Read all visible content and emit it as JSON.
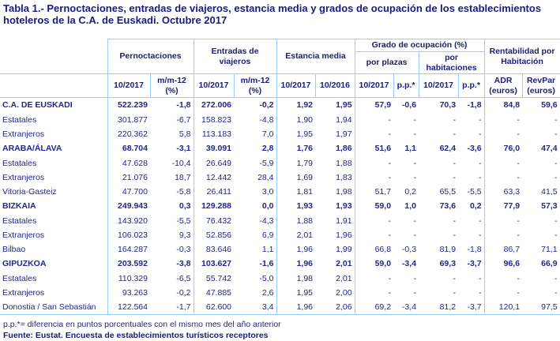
{
  "title": "Tabla 1.- Pernoctaciones, entradas de viajeros, estancia media y grados de ocupación de los establecimientos hoteleros de la C.A. de Euskadi. Octubre 2017",
  "headers": {
    "pernoctaciones": "Pernoctaciones",
    "entradas": "Entradas de viajeros",
    "estancia": "Estancia media",
    "grado": "Grado de ocupación (%)",
    "por_plazas": "por plazas",
    "por_habitaciones": "por habitaciones",
    "rentabilidad": "Rentabilidad por Habitación",
    "sub": [
      "10/2017",
      "m/m-12 (%)",
      "10/2017",
      "m/m-12 (%)",
      "10/2017",
      "10/2016",
      "10/2017",
      "p.p.*",
      "10/2017",
      "p.p.*",
      "ADR (euros)",
      "RevPar (euros)"
    ]
  },
  "rows": [
    {
      "label": "C.A. DE EUSKADI",
      "bold": true,
      "values": [
        "522.239",
        "-1,8",
        "272.006",
        "-0,2",
        "1,92",
        "1,95",
        "57,9",
        "-0,6",
        "70,3",
        "-1,8",
        "84,8",
        "59,6"
      ]
    },
    {
      "label": "Estatales",
      "bold": false,
      "values": [
        "301.877",
        "-6,7",
        "158.823",
        "-4,8",
        "1,90",
        "1,94",
        "-",
        "-",
        "-",
        "-",
        "-",
        "-"
      ]
    },
    {
      "label": "Extranjeros",
      "bold": false,
      "values": [
        "220.362",
        "5,8",
        "113.183",
        "7,0",
        "1,95",
        "1,97",
        "-",
        "-",
        "-",
        "-",
        "-",
        "-"
      ]
    },
    {
      "label": "ARABA/ÁLAVA",
      "bold": true,
      "values": [
        "68.704",
        "-3,1",
        "39.091",
        "2,8",
        "1,76",
        "1,86",
        "51,6",
        "1,1",
        "62,4",
        "-3,6",
        "76,0",
        "47,4"
      ]
    },
    {
      "label": "Estatales",
      "bold": false,
      "values": [
        "47.628",
        "-10,4",
        "26.649",
        "-5,9",
        "1,79",
        "1,88",
        "-",
        "-",
        "-",
        "-",
        "-",
        "-"
      ]
    },
    {
      "label": "Extranjeros",
      "bold": false,
      "values": [
        "21.076",
        "18,7",
        "12.442",
        "28,4",
        "1,69",
        "1,83",
        "-",
        "-",
        "-",
        "-",
        "-",
        "-"
      ]
    },
    {
      "label": "Vitoria-Gasteiz",
      "bold": false,
      "values": [
        "47.700",
        "-5,8",
        "26.411",
        "3,0",
        "1,81",
        "1,98",
        "51,7",
        "0,2",
        "65,5",
        "-5,5",
        "63,3",
        "41,5"
      ]
    },
    {
      "label": "BIZKAIA",
      "bold": true,
      "values": [
        "249.943",
        "0,3",
        "129.288",
        "0,0",
        "1,93",
        "1,93",
        "59,0",
        "1,0",
        "73,6",
        "0,2",
        "77,9",
        "57,3"
      ]
    },
    {
      "label": "Estatales",
      "bold": false,
      "values": [
        "143.920",
        "-5,5",
        "76.432",
        "-4,3",
        "1,88",
        "1,91",
        "-",
        "-",
        "-",
        "-",
        "-",
        "-"
      ]
    },
    {
      "label": "Extranjeros",
      "bold": false,
      "values": [
        "106.023",
        "9,3",
        "52.856",
        "6,9",
        "2,01",
        "1,96",
        "-",
        "-",
        "-",
        "-",
        "-",
        "-"
      ]
    },
    {
      "label": "Bilbao",
      "bold": false,
      "values": [
        "164.287",
        "-0,3",
        "83.646",
        "1,1",
        "1,96",
        "1,99",
        "66,8",
        "-0,3",
        "81,9",
        "-1,8",
        "86,7",
        "71,1"
      ]
    },
    {
      "label": "GIPUZKOA",
      "bold": true,
      "values": [
        "203.592",
        "-3,8",
        "103.627",
        "-1,6",
        "1,96",
        "2,01",
        "59,0",
        "-3,4",
        "69,3",
        "-3,7",
        "96,6",
        "66,9"
      ]
    },
    {
      "label": "Estatales",
      "bold": false,
      "values": [
        "110.329",
        "-6,5",
        "55.742",
        "-5,0",
        "1,98",
        "2,01",
        "-",
        "-",
        "-",
        "-",
        "-",
        "-"
      ]
    },
    {
      "label": "Extranjeros",
      "bold": false,
      "values": [
        "93.263",
        "-0,2",
        "47.885",
        "2,6",
        "1,95",
        "2,00",
        "-",
        "-",
        "-",
        "-",
        "-",
        "-"
      ]
    },
    {
      "label": "Donostia / San Sebastián",
      "bold": false,
      "values": [
        "122.564",
        "-1,7",
        "62.600",
        "3,4",
        "1,96",
        "2,06",
        "69,2",
        "-3,4",
        "81,2",
        "-3,7",
        "120,1",
        "97,5"
      ]
    }
  ],
  "footnote": "p.p.*= diferencia en puntos porcentuales con el mismo mes del año anterior",
  "source": "Fuente: Eustat. Encuesta de establecimientos turísticos receptores",
  "colors": {
    "text": "#1c1c78",
    "border": "#99ccff"
  }
}
